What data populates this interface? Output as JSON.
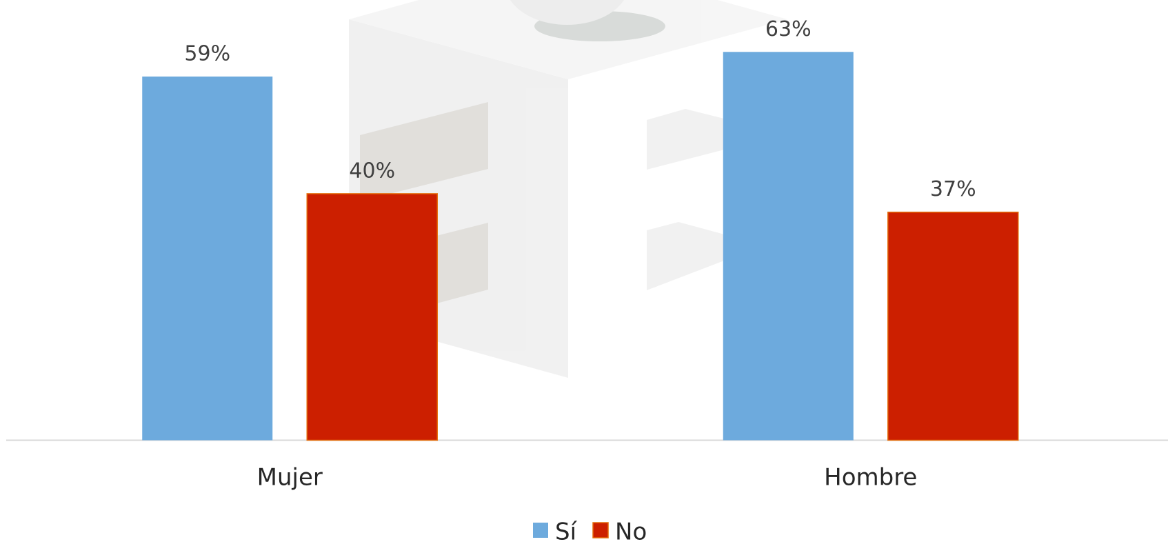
{
  "chart_data": {
    "type": "bar",
    "categories": [
      "Mujer",
      "Hombre"
    ],
    "series": [
      {
        "name": "Sí",
        "color": "#6daadd",
        "values": [
          59,
          63
        ],
        "value_labels": [
          "59%",
          "63%"
        ]
      },
      {
        "name": "No",
        "color": "#cc1f00",
        "values": [
          40,
          37
        ],
        "value_labels": [
          "40%",
          "37%"
        ]
      }
    ]
  }
}
